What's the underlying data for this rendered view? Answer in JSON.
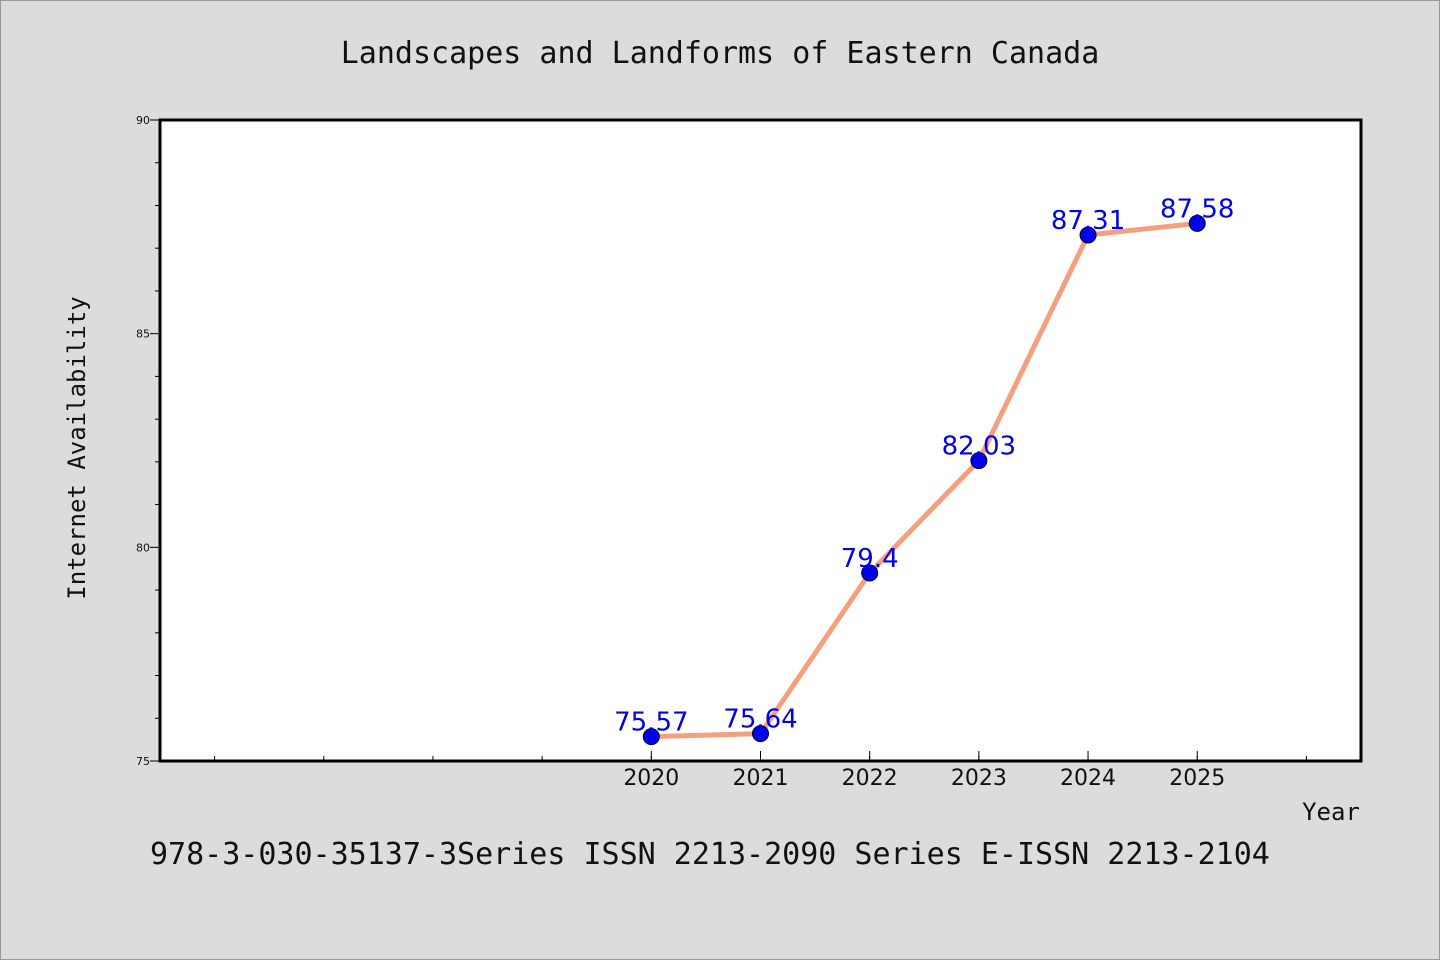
{
  "chart_data": {
    "type": "line",
    "title": "Landscapes and Landforms of Eastern Canada",
    "xlabel": "Year",
    "ylabel": "Internet Availability",
    "x": [
      2020,
      2021,
      2022,
      2023,
      2024,
      2025
    ],
    "x_tick_labels": [
      "2020",
      "2021",
      "2022",
      "2023",
      "2024",
      "2025"
    ],
    "xlim": [
      2015.5,
      2026.5
    ],
    "ylim": [
      75,
      90
    ],
    "y_ticks": [
      75,
      80,
      85,
      90
    ],
    "y_tick_labels": [
      "75",
      "80",
      "85",
      "90"
    ],
    "series": [
      {
        "values": [
          75.57,
          75.64,
          79.4,
          82.03,
          87.31,
          87.58
        ],
        "labels": [
          "75.57",
          "75.64",
          "79.4",
          "82.03",
          "87.31",
          "87.58"
        ],
        "line_color": "#f4a07e",
        "marker_color": "#0000ee",
        "label_color": "#0000ee"
      }
    ],
    "grid": false,
    "legend": "none",
    "footnote": "978-3-030-35137-3Series ISSN 2213-2090 Series E-ISSN 2213-2104"
  }
}
